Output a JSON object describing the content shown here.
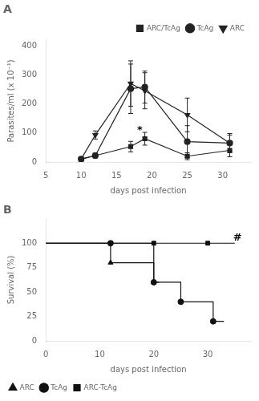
{
  "chart_data": [
    {
      "type": "line",
      "title": "A",
      "xlabel": "days post infection",
      "ylabel": "Parasites/ml (x 10⁻¹)",
      "xlim": [
        5,
        34
      ],
      "ylim": [
        0,
        420
      ],
      "xticks": [
        5,
        10,
        15,
        20,
        25,
        30
      ],
      "yticks": [
        0,
        100,
        200,
        300,
        400
      ],
      "grid": false,
      "legend": "upper right",
      "series": [
        {
          "name": "ARC/TcAg",
          "color": "#222222",
          "marker": "square",
          "line_style": "solid",
          "x": [
            10,
            12,
            17,
            19,
            25,
            31
          ],
          "values": [
            10,
            22,
            53,
            80,
            20,
            40
          ],
          "errors": [
            4,
            8,
            18,
            22,
            12,
            22
          ]
        },
        {
          "name": "TcAg",
          "color": "#222222",
          "marker": "circle",
          "line_style": "solid",
          "x": [
            10,
            12,
            17,
            19,
            25,
            31
          ],
          "values": [
            10,
            22,
            252,
            258,
            70,
            65
          ],
          "errors": [
            4,
            8,
            85,
            55,
            55,
            28
          ]
        },
        {
          "name": "ARC",
          "color": "#222222",
          "marker": "triangle_down",
          "line_style": "solid",
          "x": [
            10,
            12,
            17,
            19,
            25,
            31
          ],
          "values": [
            10,
            93,
            270,
            245,
            162,
            65
          ],
          "errors": [
            4,
            14,
            78,
            62,
            58,
            33
          ]
        }
      ],
      "annotations": [
        {
          "x": 18.3,
          "y": 92,
          "text": "*"
        }
      ]
    },
    {
      "type": "line",
      "title": "B",
      "xlabel": "days post infection",
      "ylabel": "Survival (%)",
      "xlim": [
        0,
        38
      ],
      "ylim": [
        0,
        125
      ],
      "xticks": [
        0,
        10,
        20,
        30
      ],
      "yticks": [
        0,
        25,
        50,
        75,
        100
      ],
      "grid": false,
      "legend": "lower left",
      "series": [
        {
          "name": "ARC",
          "color": "#111111",
          "marker": "triangle",
          "line_style": "solid",
          "x": [
            0,
            12,
            12,
            20,
            20,
            21
          ],
          "values": [
            100,
            100,
            80,
            80,
            60,
            60
          ],
          "marker_x": [
            12,
            20
          ],
          "marker_values": [
            80,
            60
          ]
        },
        {
          "name": "TcAg",
          "color": "#111111",
          "marker": "circle",
          "line_style": "solid",
          "x": [
            0,
            12,
            12,
            20,
            20,
            25,
            25,
            31,
            31,
            33
          ],
          "values": [
            100,
            100,
            100,
            100,
            60,
            60,
            40,
            40,
            20,
            20
          ],
          "marker_x": [
            12,
            20,
            25,
            31
          ],
          "marker_values": [
            100,
            60,
            40,
            20
          ]
        },
        {
          "name": "ARC-TcAg",
          "color": "#111111",
          "marker": "square",
          "line_style": "solid",
          "x": [
            0,
            12,
            12,
            20,
            20,
            30,
            30,
            35
          ],
          "values": [
            100,
            100,
            100,
            100,
            100,
            100,
            100,
            100
          ],
          "marker_x": [
            12,
            20,
            30
          ],
          "marker_values": [
            100,
            100,
            100
          ]
        }
      ],
      "annotations": [
        {
          "x": 35.5,
          "y": 100,
          "text": "#"
        }
      ]
    }
  ]
}
